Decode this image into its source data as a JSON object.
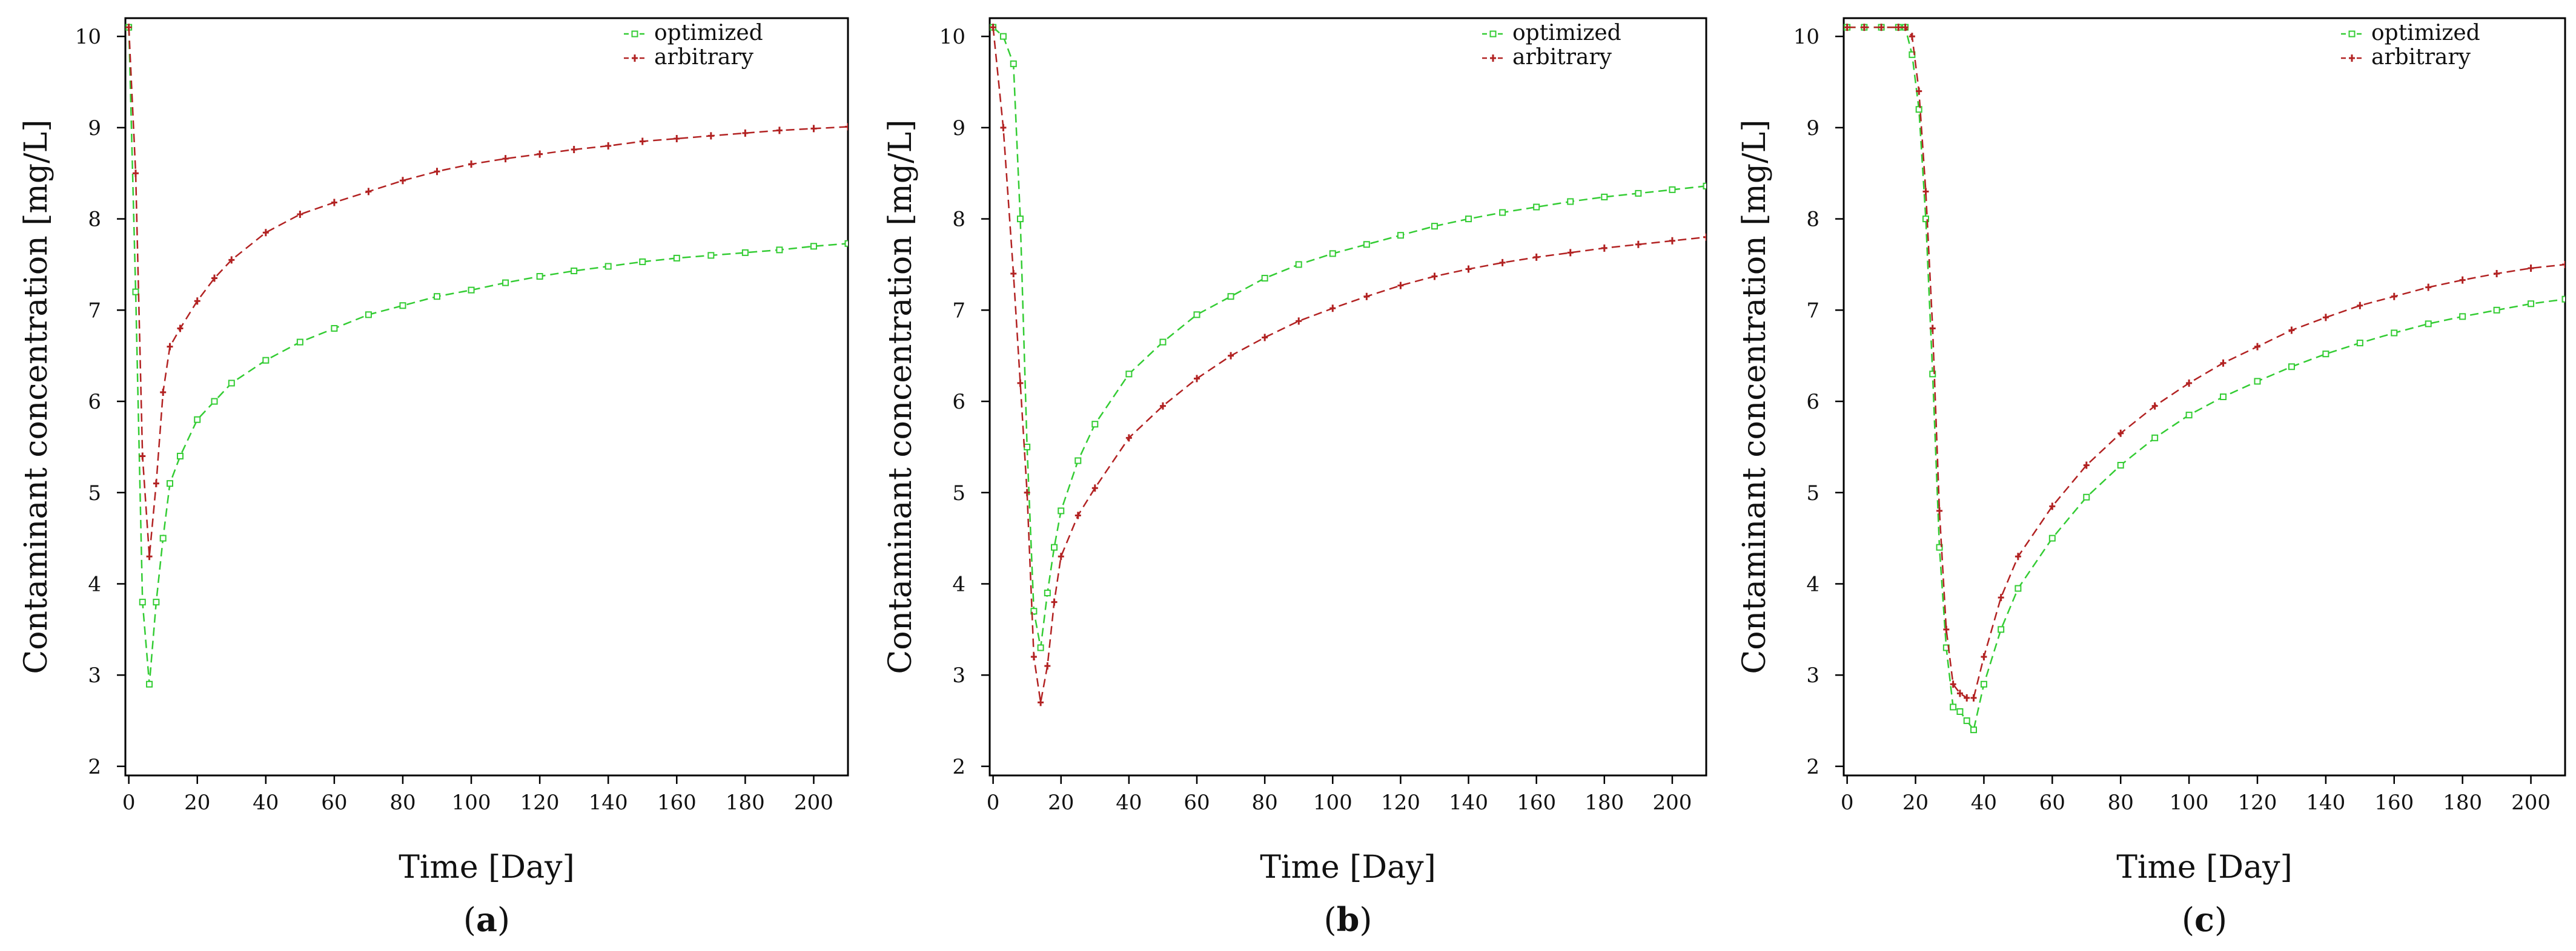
{
  "colors": {
    "optimized": "#33cc33",
    "arbitrary": "#b22222",
    "axis": "#000000"
  },
  "chart_data": [
    {
      "type": "line",
      "panel_label": "a",
      "xlabel": "Time [Day]",
      "ylabel": "Contaminant concentration [mg/L]",
      "xlim": [
        -1,
        210
      ],
      "ylim": [
        1.9,
        10.2
      ],
      "xticks": [
        0,
        20,
        40,
        60,
        80,
        100,
        120,
        140,
        160,
        180,
        200
      ],
      "yticks": [
        2,
        3,
        4,
        5,
        6,
        7,
        8,
        9,
        10
      ],
      "legend_position": "top-right",
      "series": [
        {
          "name": "optimized",
          "x": [
            0,
            2,
            4,
            6,
            8,
            10,
            12,
            15,
            20,
            25,
            30,
            40,
            50,
            60,
            70,
            80,
            90,
            100,
            110,
            120,
            130,
            140,
            150,
            160,
            170,
            180,
            190,
            200,
            210
          ],
          "y": [
            10.1,
            7.2,
            3.8,
            2.9,
            3.8,
            4.5,
            5.1,
            5.4,
            5.8,
            6.0,
            6.2,
            6.45,
            6.65,
            6.8,
            6.95,
            7.05,
            7.15,
            7.22,
            7.3,
            7.37,
            7.43,
            7.48,
            7.53,
            7.57,
            7.6,
            7.63,
            7.66,
            7.7,
            7.73
          ]
        },
        {
          "name": "arbitrary",
          "x": [
            0,
            2,
            4,
            6,
            8,
            10,
            12,
            15,
            20,
            25,
            30,
            40,
            50,
            60,
            70,
            80,
            90,
            100,
            110,
            120,
            130,
            140,
            150,
            160,
            170,
            180,
            190,
            200,
            210
          ],
          "y": [
            10.1,
            8.5,
            5.4,
            4.3,
            5.1,
            6.1,
            6.6,
            6.8,
            7.1,
            7.35,
            7.55,
            7.85,
            8.05,
            8.18,
            8.3,
            8.42,
            8.52,
            8.6,
            8.66,
            8.71,
            8.76,
            8.8,
            8.85,
            8.88,
            8.91,
            8.94,
            8.97,
            8.99,
            9.01
          ]
        }
      ]
    },
    {
      "type": "line",
      "panel_label": "b",
      "xlabel": "Time [Day]",
      "ylabel": "Contaminant concentration [mg/L]",
      "xlim": [
        -1,
        210
      ],
      "ylim": [
        1.9,
        10.2
      ],
      "xticks": [
        0,
        20,
        40,
        60,
        80,
        100,
        120,
        140,
        160,
        180,
        200
      ],
      "yticks": [
        2,
        3,
        4,
        5,
        6,
        7,
        8,
        9,
        10
      ],
      "legend_position": "top-right",
      "series": [
        {
          "name": "optimized",
          "x": [
            0,
            3,
            6,
            8,
            10,
            12,
            14,
            16,
            18,
            20,
            25,
            30,
            40,
            50,
            60,
            70,
            80,
            90,
            100,
            110,
            120,
            130,
            140,
            150,
            160,
            170,
            180,
            190,
            200,
            210
          ],
          "y": [
            10.1,
            10.0,
            9.7,
            8.0,
            5.5,
            3.7,
            3.3,
            3.9,
            4.4,
            4.8,
            5.35,
            5.75,
            6.3,
            6.65,
            6.95,
            7.15,
            7.35,
            7.5,
            7.62,
            7.72,
            7.82,
            7.92,
            8.0,
            8.07,
            8.13,
            8.19,
            8.24,
            8.28,
            8.32,
            8.36
          ]
        },
        {
          "name": "arbitrary",
          "x": [
            0,
            3,
            6,
            8,
            10,
            12,
            14,
            16,
            18,
            20,
            25,
            30,
            40,
            50,
            60,
            70,
            80,
            90,
            100,
            110,
            120,
            130,
            140,
            150,
            160,
            170,
            180,
            190,
            200,
            210
          ],
          "y": [
            10.1,
            9.0,
            7.4,
            6.2,
            5.0,
            3.2,
            2.7,
            3.1,
            3.8,
            4.3,
            4.75,
            5.05,
            5.6,
            5.95,
            6.25,
            6.5,
            6.7,
            6.88,
            7.02,
            7.15,
            7.27,
            7.37,
            7.45,
            7.52,
            7.58,
            7.63,
            7.68,
            7.72,
            7.76,
            7.8
          ]
        }
      ]
    },
    {
      "type": "line",
      "panel_label": "c",
      "xlabel": "Time [Day]",
      "ylabel": "Contaminant concentration [mg/L]",
      "xlim": [
        -1,
        210
      ],
      "ylim": [
        1.9,
        10.2
      ],
      "xticks": [
        0,
        20,
        40,
        60,
        80,
        100,
        120,
        140,
        160,
        180,
        200
      ],
      "yticks": [
        2,
        3,
        4,
        5,
        6,
        7,
        8,
        9,
        10
      ],
      "legend_position": "top-right",
      "series": [
        {
          "name": "optimized",
          "x": [
            0,
            5,
            10,
            15,
            17,
            19,
            21,
            23,
            25,
            27,
            29,
            31,
            33,
            35,
            37,
            40,
            45,
            50,
            60,
            70,
            80,
            90,
            100,
            110,
            120,
            130,
            140,
            150,
            160,
            170,
            180,
            190,
            200,
            210
          ],
          "y": [
            10.1,
            10.1,
            10.1,
            10.1,
            10.1,
            9.8,
            9.2,
            8.0,
            6.3,
            4.4,
            3.3,
            2.65,
            2.6,
            2.5,
            2.4,
            2.9,
            3.5,
            3.95,
            4.5,
            4.95,
            5.3,
            5.6,
            5.85,
            6.05,
            6.22,
            6.38,
            6.52,
            6.64,
            6.75,
            6.85,
            6.93,
            7.0,
            7.07,
            7.12
          ]
        },
        {
          "name": "arbitrary",
          "x": [
            0,
            5,
            10,
            15,
            17,
            19,
            21,
            23,
            25,
            27,
            29,
            31,
            33,
            35,
            37,
            40,
            45,
            50,
            60,
            70,
            80,
            90,
            100,
            110,
            120,
            130,
            140,
            150,
            160,
            170,
            180,
            190,
            200,
            210
          ],
          "y": [
            10.1,
            10.1,
            10.1,
            10.1,
            10.1,
            10.0,
            9.4,
            8.3,
            6.8,
            4.8,
            3.5,
            2.9,
            2.8,
            2.75,
            2.75,
            3.2,
            3.85,
            4.3,
            4.85,
            5.3,
            5.65,
            5.95,
            6.2,
            6.42,
            6.6,
            6.78,
            6.92,
            7.05,
            7.15,
            7.25,
            7.33,
            7.4,
            7.46,
            7.5
          ]
        }
      ]
    }
  ]
}
